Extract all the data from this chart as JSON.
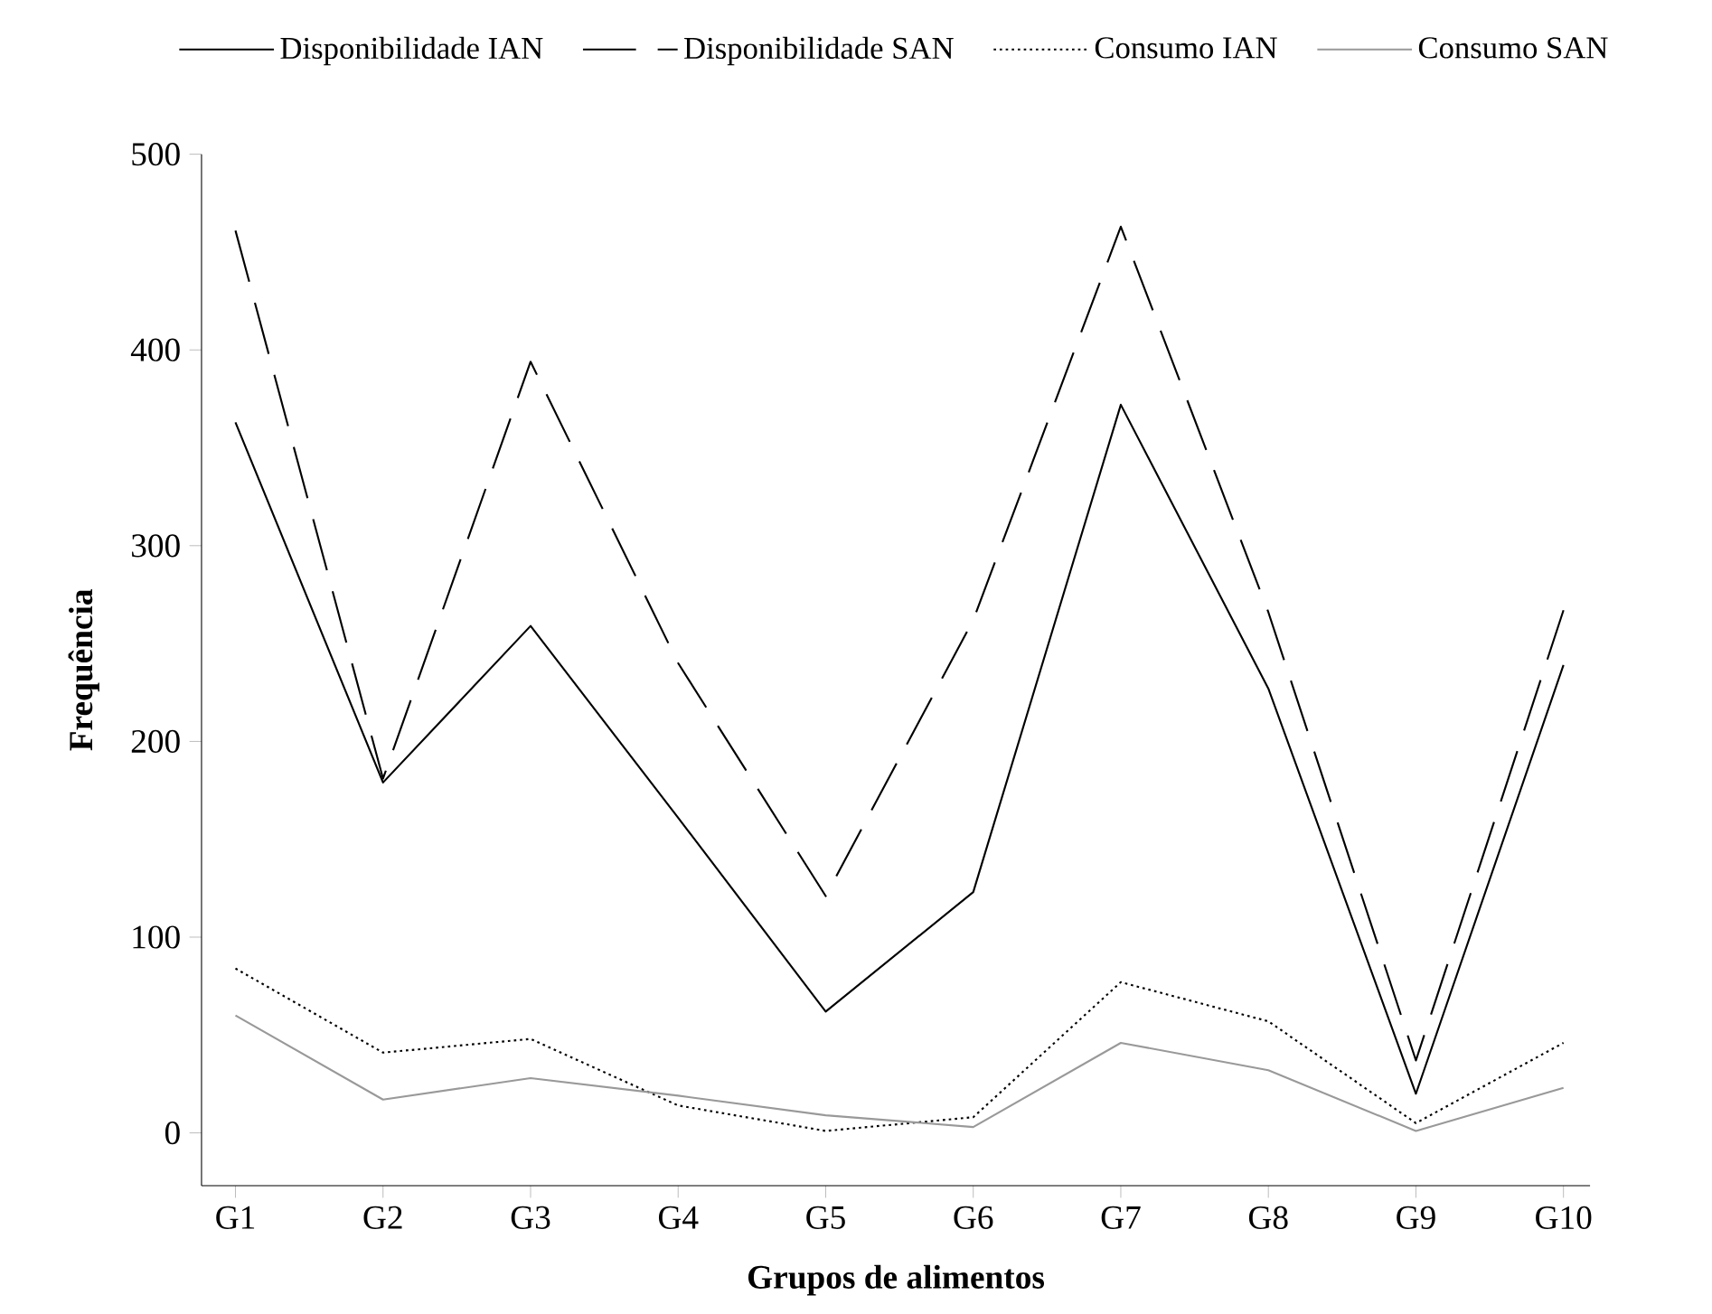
{
  "chart_data": {
    "type": "line",
    "xlabel": "Grupos de alimentos",
    "ylabel": "Frequência",
    "legend": "top",
    "categories": [
      "G1",
      "G2",
      "G3",
      "G4",
      "G5",
      "G6",
      "G7",
      "G8",
      "G9",
      "G10"
    ],
    "ylim": [
      -27,
      500
    ],
    "yticks": [
      0,
      100,
      200,
      300,
      400,
      500
    ],
    "series": [
      {
        "name": "Disponibilidade IAN",
        "color": "#000000",
        "line_style": "solid",
        "values": [
          363,
          179,
          259,
          161,
          62,
          123,
          372,
          227,
          20,
          239
        ]
      },
      {
        "name": "Disponibilidade SAN",
        "color": "#000000",
        "line_style": "dashed",
        "values": [
          461,
          181,
          394,
          240,
          121,
          262,
          463,
          266,
          37,
          267
        ]
      },
      {
        "name": "Consumo IAN",
        "color": "#000000",
        "line_style": "dotted",
        "values": [
          84,
          41,
          48,
          14,
          1,
          8,
          77,
          57,
          5,
          46
        ]
      },
      {
        "name": "Consumo SAN",
        "color": "#999999",
        "line_style": "solid",
        "values": [
          60,
          17,
          28,
          19,
          9,
          3,
          46,
          32,
          1,
          23
        ]
      }
    ]
  }
}
